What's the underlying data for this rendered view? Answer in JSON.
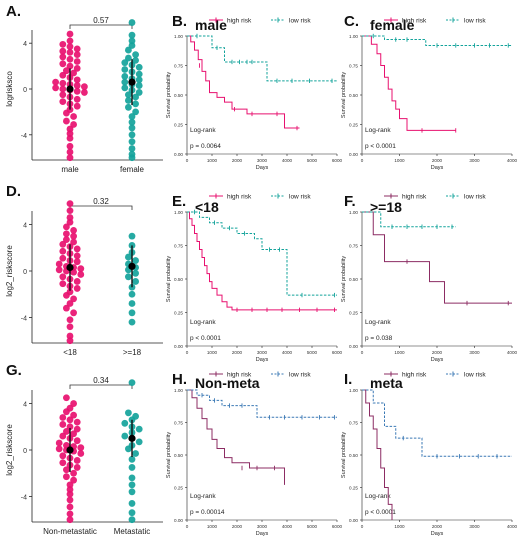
{
  "colors": {
    "high_risk": "#e8106f",
    "low_risk": "#13a39b",
    "high_risk_dark": "#8c2c63",
    "low_risk_blue": "#3b79b5",
    "axis": "#222222"
  },
  "chart_data": [
    {
      "id": "A",
      "type": "scatter",
      "panel_label": "A.",
      "ylabel": "logrisksco",
      "categories": [
        "male",
        "female"
      ],
      "ylim": [
        -6.2,
        6.2
      ],
      "yticks": [
        "4",
        "0",
        "-4"
      ],
      "ytick_values": [
        4,
        0,
        -4
      ],
      "bracket_label": "0.57",
      "series": [
        {
          "name": "male",
          "color": "#e8106f",
          "mean": 0.0,
          "sd": 1.8,
          "values": [
            4.8,
            4.2,
            3.9,
            3.7,
            3.5,
            3.3,
            3.2,
            3.0,
            2.8,
            2.6,
            2.4,
            2.2,
            2.0,
            1.8,
            1.6,
            1.4,
            1.2,
            1.0,
            0.8,
            0.6,
            0.5,
            0.4,
            0.3,
            0.2,
            0.1,
            0.0,
            -0.1,
            -0.2,
            -0.3,
            -0.5,
            -0.7,
            -0.9,
            -1.1,
            -1.3,
            -1.5,
            -1.8,
            -2.1,
            -2.4,
            -2.8,
            -3.1,
            -3.5,
            -3.9,
            -4.3,
            -5.0,
            -5.5,
            -6.0
          ]
        },
        {
          "name": "female",
          "color": "#13a39b",
          "mean": 0.6,
          "sd": 2.0,
          "values": [
            5.8,
            4.7,
            4.2,
            3.8,
            3.4,
            3.0,
            2.7,
            2.5,
            2.3,
            2.1,
            1.9,
            1.7,
            1.5,
            1.3,
            1.1,
            0.9,
            0.8,
            0.6,
            0.4,
            0.3,
            0.1,
            -0.1,
            -0.3,
            -0.5,
            -0.7,
            -1.0,
            -1.3,
            -1.6,
            -2.0,
            -2.4,
            -2.9,
            -3.4,
            -4.0,
            -4.6,
            -5.2,
            -5.7,
            -6.0
          ]
        }
      ]
    },
    {
      "id": "D",
      "type": "scatter",
      "panel_label": "D.",
      "ylabel": "log2_riskscore",
      "categories": [
        "<18",
        ">=18"
      ],
      "ylim": [
        -6.2,
        6.2
      ],
      "yticks": [
        "4",
        "0",
        "-4"
      ],
      "ytick_values": [
        4,
        0,
        -4
      ],
      "bracket_label": "0.32",
      "series": [
        {
          "name": "<18",
          "color": "#e8106f",
          "mean": 0.3,
          "sd": 2.0,
          "values": [
            5.8,
            5.2,
            4.6,
            4.2,
            3.8,
            3.5,
            3.2,
            3.0,
            2.7,
            2.5,
            2.3,
            2.1,
            1.9,
            1.7,
            1.5,
            1.3,
            1.1,
            0.9,
            0.8,
            0.6,
            0.4,
            0.3,
            0.2,
            0.1,
            0.0,
            -0.1,
            -0.3,
            -0.5,
            -0.7,
            -0.9,
            -1.1,
            -1.3,
            -1.5,
            -1.8,
            -2.1,
            -2.4,
            -2.8,
            -3.2,
            -3.6,
            -4.2,
            -4.8,
            -5.6,
            -6.0
          ]
        },
        {
          "name": ">=18",
          "color": "#13a39b",
          "mean": 0.4,
          "sd": 1.8,
          "values": [
            3.0,
            2.2,
            1.6,
            1.2,
            0.9,
            0.6,
            0.3,
            0.1,
            -0.2,
            -0.5,
            -0.9,
            -1.4,
            -2.0,
            -2.8,
            -3.6,
            -4.4
          ]
        }
      ]
    },
    {
      "id": "G",
      "type": "scatter",
      "panel_label": "G.",
      "ylabel": "log2_riskscore",
      "categories": [
        "Non-metastatic",
        "Metastatic"
      ],
      "ylim": [
        -6.2,
        6.2
      ],
      "yticks": [
        "4",
        "0",
        "-4"
      ],
      "ytick_values": [
        4,
        0,
        -4
      ],
      "bracket_label": "0.34",
      "series": [
        {
          "name": "Non-metastatic",
          "color": "#e8106f",
          "mean": 0.0,
          "sd": 1.9,
          "values": [
            4.5,
            4.0,
            3.6,
            3.3,
            3.0,
            2.8,
            2.6,
            2.4,
            2.2,
            2.0,
            1.8,
            1.6,
            1.4,
            1.2,
            1.0,
            0.8,
            0.6,
            0.4,
            0.3,
            0.2,
            0.1,
            0.0,
            -0.1,
            -0.3,
            -0.5,
            -0.7,
            -0.9,
            -1.1,
            -1.3,
            -1.5,
            -1.7,
            -2.0,
            -2.3,
            -2.6,
            -3.0,
            -3.4,
            -3.8,
            -4.3,
            -4.9,
            -5.5,
            -6.0
          ]
        },
        {
          "name": "Metastatic",
          "color": "#13a39b",
          "mean": 1.0,
          "sd": 1.6,
          "values": [
            5.8,
            3.2,
            2.9,
            2.6,
            2.3,
            2.0,
            1.8,
            1.5,
            1.2,
            1.0,
            0.7,
            0.4,
            0.1,
            -0.3,
            -0.8,
            -1.5,
            -2.4,
            -3.0,
            -3.6,
            -4.6,
            -5.4,
            -6.0
          ]
        }
      ]
    },
    {
      "id": "B",
      "type": "line",
      "panel_label": "B.",
      "subtitle": "male",
      "xlabel": "Days",
      "ylabel": "Survival probability",
      "xlim": [
        0,
        6000
      ],
      "xticks": [
        0,
        1000,
        2000,
        3000,
        4000,
        5000,
        6000
      ],
      "ylim": [
        0,
        1
      ],
      "yticks": [
        0.0,
        0.25,
        0.5,
        0.75,
        1.0
      ],
      "legend": [
        "high risk",
        "low risk"
      ],
      "test_label": "Log-rank",
      "pvalue": "p = 0.0064",
      "series": [
        {
          "name": "high risk",
          "color": "#e8106f",
          "dash": false,
          "x": [
            0,
            150,
            300,
            450,
            600,
            750,
            900,
            1200,
            1500,
            1800,
            2400,
            3000,
            3900,
            4500
          ],
          "y": [
            1.0,
            0.95,
            0.88,
            0.8,
            0.7,
            0.62,
            0.52,
            0.48,
            0.44,
            0.38,
            0.34,
            0.34,
            0.22,
            0.22
          ],
          "censor_x": [
            500,
            1900,
            2600,
            3600,
            4400
          ],
          "censor_y": [
            0.75,
            0.38,
            0.34,
            0.34,
            0.22
          ]
        },
        {
          "name": "low risk",
          "color": "#13a39b",
          "dash": true,
          "x": [
            0,
            700,
            1000,
            1500,
            2700,
            3200,
            6000
          ],
          "y": [
            1.0,
            1.0,
            0.9,
            0.78,
            0.78,
            0.62,
            0.62
          ],
          "censor_x": [
            400,
            1200,
            1800,
            2100,
            2400,
            2600,
            3600,
            4200,
            4900,
            5800
          ],
          "censor_y": [
            1.0,
            0.9,
            0.78,
            0.78,
            0.78,
            0.78,
            0.62,
            0.62,
            0.62,
            0.62
          ]
        }
      ]
    },
    {
      "id": "C",
      "type": "line",
      "panel_label": "C.",
      "subtitle": "female",
      "xlabel": "Days",
      "ylabel": "Survival probability",
      "xlim": [
        0,
        4000
      ],
      "xticks": [
        0,
        1000,
        2000,
        3000,
        4000
      ],
      "ylim": [
        0,
        1
      ],
      "yticks": [
        0.0,
        0.25,
        0.5,
        0.75,
        1.0
      ],
      "legend": [
        "high risk",
        "low risk"
      ],
      "test_label": "Log-rank",
      "pvalue": "p < 0.0001",
      "series": [
        {
          "name": "high risk",
          "color": "#e8106f",
          "dash": false,
          "x": [
            0,
            250,
            400,
            500,
            600,
            700,
            800,
            900,
            1000,
            1200,
            1500,
            2500
          ],
          "y": [
            1.0,
            0.93,
            0.85,
            0.75,
            0.65,
            0.55,
            0.45,
            0.38,
            0.3,
            0.2,
            0.2,
            0.2
          ],
          "censor_x": [
            1600,
            2500
          ],
          "censor_y": [
            0.2,
            0.2
          ]
        },
        {
          "name": "low risk",
          "color": "#13a39b",
          "dash": true,
          "x": [
            0,
            600,
            1700,
            4000
          ],
          "y": [
            1.0,
            0.97,
            0.92,
            0.92
          ],
          "censor_x": [
            300,
            900,
            1200,
            2000,
            2500,
            3000,
            3400,
            3900
          ],
          "censor_y": [
            1.0,
            0.97,
            0.97,
            0.92,
            0.92,
            0.92,
            0.92,
            0.92
          ]
        }
      ]
    },
    {
      "id": "E",
      "type": "line",
      "panel_label": "E.",
      "subtitle": "<18",
      "xlabel": "Days",
      "ylabel": "Survival probability",
      "xlim": [
        0,
        6000
      ],
      "xticks": [
        0,
        1000,
        2000,
        3000,
        4000,
        5000,
        6000
      ],
      "ylim": [
        0,
        1
      ],
      "yticks": [
        0.0,
        0.25,
        0.5,
        0.75,
        1.0
      ],
      "legend": [
        "high risk",
        "low risk"
      ],
      "test_label": "Log-rank",
      "pvalue": "p < 0.0001",
      "series": [
        {
          "name": "high risk",
          "color": "#e8106f",
          "dash": false,
          "x": [
            0,
            100,
            200,
            300,
            400,
            500,
            600,
            700,
            800,
            900,
            1000,
            1200,
            1400,
            1600,
            1800,
            2200,
            6000
          ],
          "y": [
            1.0,
            0.95,
            0.9,
            0.84,
            0.78,
            0.72,
            0.66,
            0.6,
            0.54,
            0.48,
            0.43,
            0.38,
            0.33,
            0.29,
            0.27,
            0.27,
            0.27
          ],
          "censor_x": [
            2000,
            2600,
            3200,
            3800,
            4500,
            5200,
            5900
          ],
          "censor_y": [
            0.27,
            0.27,
            0.27,
            0.27,
            0.27,
            0.27,
            0.27
          ]
        },
        {
          "name": "low risk",
          "color": "#13a39b",
          "dash": true,
          "x": [
            0,
            500,
            900,
            1400,
            2000,
            2700,
            3000,
            3500,
            4000,
            6000
          ],
          "y": [
            1.0,
            0.96,
            0.92,
            0.88,
            0.84,
            0.8,
            0.72,
            0.72,
            0.38,
            0.38
          ],
          "censor_x": [
            300,
            1100,
            1700,
            2300,
            3300,
            3700,
            4600,
            5900
          ],
          "censor_y": [
            1.0,
            0.92,
            0.88,
            0.84,
            0.72,
            0.72,
            0.38,
            0.38
          ]
        }
      ]
    },
    {
      "id": "F",
      "type": "line",
      "panel_label": "F.",
      "subtitle": ">=18",
      "xlabel": "Days",
      "ylabel": "Survival probability",
      "xlim": [
        0,
        4000
      ],
      "xticks": [
        0,
        1000,
        2000,
        3000,
        4000
      ],
      "ylim": [
        0,
        1
      ],
      "yticks": [
        0.0,
        0.25,
        0.5,
        0.75,
        1.0
      ],
      "legend": [
        "high risk",
        "low risk"
      ],
      "test_label": "Log-rank",
      "pvalue": "p = 0.038",
      "series": [
        {
          "name": "high risk",
          "color": "#8c2c63",
          "dash": false,
          "x": [
            0,
            300,
            600,
            1800,
            2200,
            4000
          ],
          "y": [
            1.0,
            0.83,
            0.63,
            0.48,
            0.32,
            0.32
          ],
          "censor_x": [
            1200,
            2800,
            3900
          ],
          "censor_y": [
            0.63,
            0.32,
            0.32
          ]
        },
        {
          "name": "low risk",
          "color": "#13a39b",
          "dash": true,
          "x": [
            0,
            500,
            2500
          ],
          "y": [
            1.0,
            0.89,
            0.89
          ],
          "censor_x": [
            800,
            1200,
            1600,
            2000,
            2400
          ],
          "censor_y": [
            0.89,
            0.89,
            0.89,
            0.89,
            0.89
          ]
        }
      ]
    },
    {
      "id": "H",
      "type": "line",
      "panel_label": "H.",
      "subtitle": "Non-meta",
      "xlabel": "Days",
      "ylabel": "Survival probability",
      "xlim": [
        0,
        6000
      ],
      "xticks": [
        0,
        1000,
        2000,
        3000,
        4000,
        5000,
        6000
      ],
      "ylim": [
        0,
        1
      ],
      "yticks": [
        0.0,
        0.25,
        0.5,
        0.75,
        1.0
      ],
      "legend": [
        "high risk",
        "low risk"
      ],
      "test_label": "Log-rank",
      "pvalue": "p = 0.00014",
      "series": [
        {
          "name": "high risk",
          "color": "#8c2c63",
          "dash": false,
          "x": [
            0,
            200,
            400,
            600,
            800,
            1000,
            1200,
            1500,
            1800,
            2500,
            3000,
            3900
          ],
          "y": [
            1.0,
            0.94,
            0.86,
            0.78,
            0.7,
            0.62,
            0.55,
            0.48,
            0.44,
            0.4,
            0.4,
            0.27
          ],
          "censor_x": [
            2200,
            2800,
            3500
          ],
          "censor_y": [
            0.4,
            0.4,
            0.4
          ]
        },
        {
          "name": "low risk",
          "color": "#3b79b5",
          "dash": true,
          "x": [
            0,
            400,
            900,
            1400,
            2800,
            6000
          ],
          "y": [
            1.0,
            0.96,
            0.92,
            0.88,
            0.79,
            0.79
          ],
          "censor_x": [
            600,
            1100,
            1700,
            2200,
            3300,
            3900,
            4600,
            5300,
            5900
          ],
          "censor_y": [
            0.96,
            0.92,
            0.88,
            0.88,
            0.79,
            0.79,
            0.79,
            0.79,
            0.79
          ]
        }
      ]
    },
    {
      "id": "I",
      "type": "line",
      "panel_label": "I.",
      "subtitle": "meta",
      "xlabel": "Days",
      "ylabel": "Survival probability",
      "xlim": [
        0,
        4000
      ],
      "xticks": [
        0,
        1000,
        2000,
        3000,
        4000
      ],
      "ylim": [
        0,
        1
      ],
      "yticks": [
        0.0,
        0.25,
        0.5,
        0.75,
        1.0
      ],
      "legend": [
        "high risk",
        "low risk"
      ],
      "test_label": "Log-rank",
      "pvalue": "p < 0.0001",
      "series": [
        {
          "name": "high risk",
          "color": "#8c2c63",
          "dash": false,
          "x": [
            0,
            100,
            200,
            300,
            400,
            500,
            600,
            700,
            800
          ],
          "y": [
            1.0,
            0.9,
            0.8,
            0.7,
            0.55,
            0.4,
            0.25,
            0.12,
            0.0
          ],
          "censor_x": [],
          "censor_y": []
        },
        {
          "name": "low risk",
          "color": "#3b79b5",
          "dash": true,
          "x": [
            0,
            300,
            600,
            900,
            1600,
            4000
          ],
          "y": [
            1.0,
            0.9,
            0.72,
            0.63,
            0.49,
            0.49
          ],
          "censor_x": [
            1100,
            2000,
            2600,
            3100,
            3600
          ],
          "censor_y": [
            0.63,
            0.49,
            0.49,
            0.49,
            0.49
          ]
        }
      ]
    }
  ]
}
